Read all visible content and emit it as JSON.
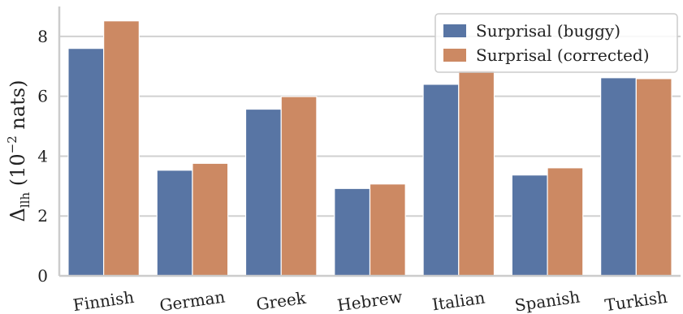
{
  "chart_data": {
    "type": "bar",
    "title": "",
    "xlabel": "",
    "ylabel": {
      "main": "Δ",
      "subscript": "llh",
      "rest_prefix": " (10",
      "superscript": "−2",
      "rest_suffix": " nats)"
    },
    "categories": [
      "Finnish",
      "German",
      "Greek",
      "Hebrew",
      "Italian",
      "Spanish",
      "Turkish"
    ],
    "series": [
      {
        "name": "Surprisal (buggy)",
        "color": "#5875a4",
        "values": [
          7.6,
          3.53,
          5.57,
          2.92,
          6.4,
          3.37,
          6.62
        ]
      },
      {
        "name": "Surprisal (corrected)",
        "color": "#cc8963",
        "values": [
          8.52,
          3.76,
          5.99,
          3.07,
          6.87,
          3.61,
          6.59
        ]
      }
    ],
    "ylim": [
      0,
      9.0
    ],
    "yticks": [
      "0",
      "2",
      "4",
      "6",
      "8"
    ],
    "grid": true,
    "legend_position": "top-right"
  }
}
